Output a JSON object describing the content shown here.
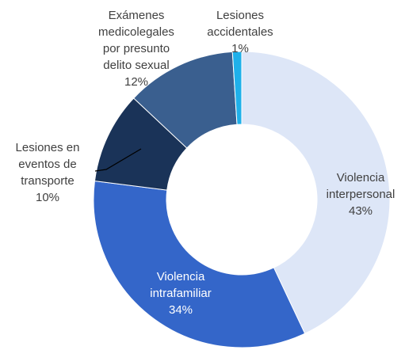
{
  "chart_data": {
    "type": "donut",
    "categories": [
      "Violencia interpersonal",
      "Violencia intrafamiliar",
      "Lesiones en eventos de transporte",
      "Exámenes medicolegales por presunto delito sexual",
      "Lesiones accidentales"
    ],
    "values": [
      43,
      34,
      10,
      12,
      1
    ],
    "value_labels": [
      "43%",
      "34%",
      "10%",
      "12%",
      "1%"
    ],
    "colors": [
      "#dde6f7",
      "#3466c9",
      "#1a3358",
      "#3a5f8f",
      "#1fb0ea"
    ]
  }
}
